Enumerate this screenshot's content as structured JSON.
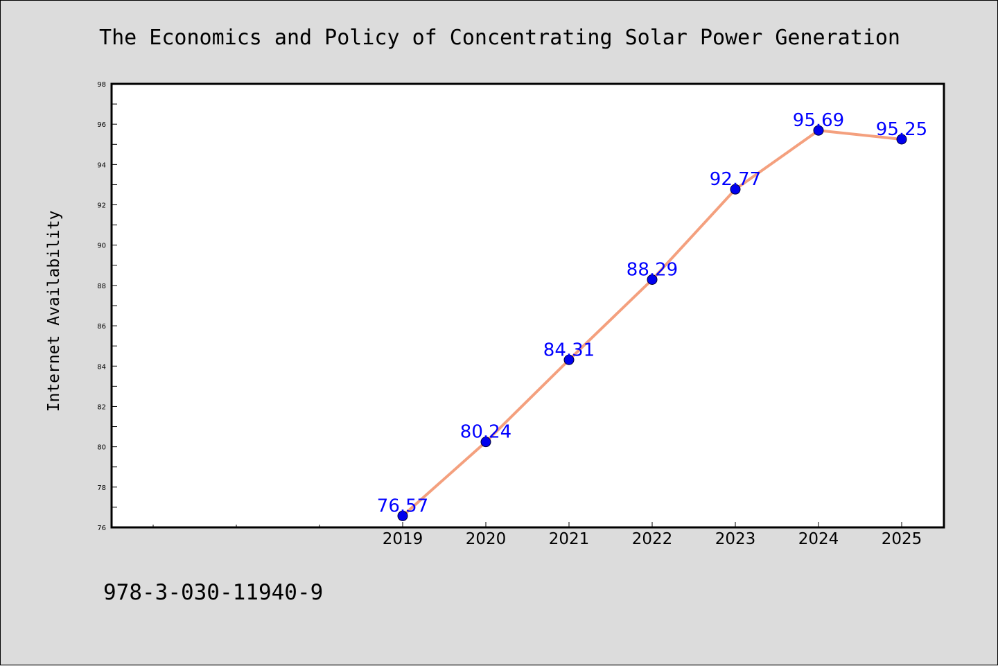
{
  "chart_data": {
    "type": "line",
    "title": "The Economics and Policy of Concentrating Solar Power Generation",
    "ylabel": "Internet Availability",
    "xlabel": "",
    "categories": [
      "2019",
      "2020",
      "2021",
      "2022",
      "2023",
      "2024",
      "2025"
    ],
    "values": [
      76.57,
      80.24,
      84.31,
      88.29,
      92.77,
      95.69,
      95.25
    ],
    "data_labels": [
      "76.57",
      "80.24",
      "84.31",
      "88.29",
      "92.77",
      "95.69",
      "95.25"
    ],
    "ylim": [
      76,
      98
    ],
    "yticks": [
      "76",
      "78",
      "80",
      "82",
      "84",
      "86",
      "88",
      "90",
      "92",
      "94",
      "96",
      "98"
    ],
    "grid": false,
    "legend": "none",
    "colors": {
      "line": "#f4a07e",
      "marker": "#0000ee",
      "label": "#0000ff"
    }
  },
  "footer": {
    "isbn": "978-3-030-11940-9"
  }
}
